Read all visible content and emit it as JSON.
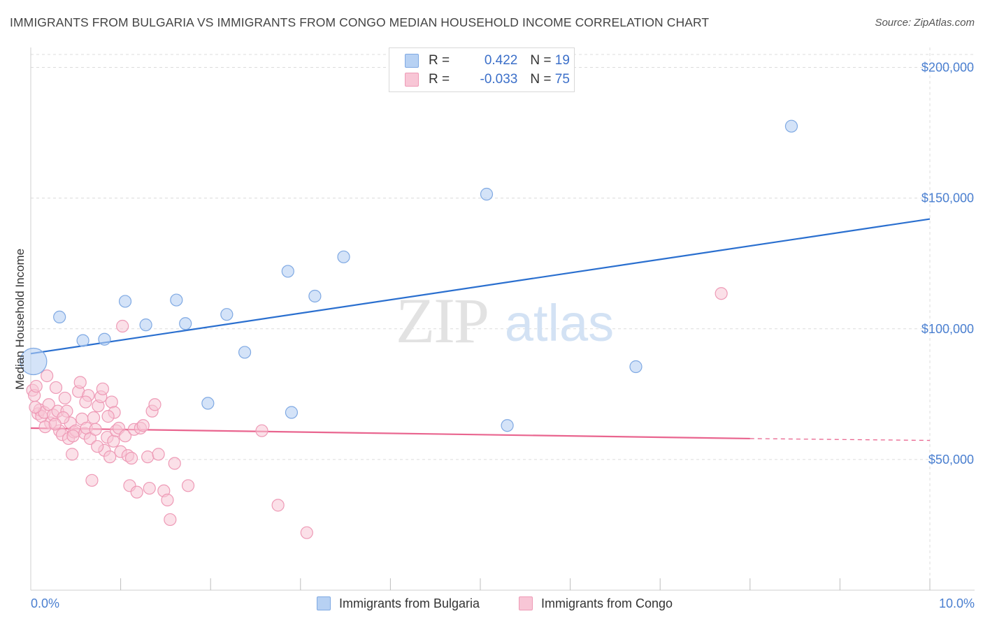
{
  "title": "IMMIGRANTS FROM BULGARIA VS IMMIGRANTS FROM CONGO MEDIAN HOUSEHOLD INCOME CORRELATION CHART",
  "source": "Source: ZipAtlas.com",
  "watermark": {
    "zip": "ZIP",
    "atlas": "atlas"
  },
  "legend": {
    "bulgaria": {
      "r_label": "R = ",
      "r_value": "0.422",
      "n_label": "N = ",
      "n_value": "19"
    },
    "congo": {
      "r_label": "R = ",
      "r_value": "-0.033",
      "n_label": "N = ",
      "n_value": "75"
    }
  },
  "bottom_legend": {
    "bulgaria": "Immigrants from Bulgaria",
    "congo": "Immigrants from Congo"
  },
  "colors": {
    "bulgaria_fill": "#b7d1f3",
    "bulgaria_stroke": "#7fa9e3",
    "bulgaria_line": "#2a6fcf",
    "congo_fill": "#f8c6d6",
    "congo_stroke": "#ee9ab6",
    "congo_line": "#e9658f",
    "tick_text": "#4a7fd0"
  },
  "chart_data": {
    "type": "scatter",
    "ylabel": "Median Household Income",
    "xlim": [
      0,
      10
    ],
    "ylim": [
      0,
      210000
    ],
    "x_tick_labels": [
      {
        "x": 0,
        "label": "0.0%"
      },
      {
        "x": 10,
        "label": "10.0%"
      }
    ],
    "y_ticks": [
      {
        "y": 50000,
        "label": "$50,000"
      },
      {
        "y": 100000,
        "label": "$100,000"
      },
      {
        "y": 150000,
        "label": "$150,000"
      },
      {
        "y": 200000,
        "label": "$200,000"
      }
    ],
    "grid": true,
    "series": [
      {
        "name": "Immigrants from Bulgaria",
        "points": [
          {
            "x": 0.03,
            "y": 87500,
            "big": true
          },
          {
            "x": 0.32,
            "y": 104500
          },
          {
            "x": 0.58,
            "y": 95500
          },
          {
            "x": 0.82,
            "y": 96000
          },
          {
            "x": 1.05,
            "y": 110500
          },
          {
            "x": 1.28,
            "y": 101500
          },
          {
            "x": 1.62,
            "y": 111000
          },
          {
            "x": 1.72,
            "y": 102000
          },
          {
            "x": 1.97,
            "y": 71500
          },
          {
            "x": 2.18,
            "y": 105500
          },
          {
            "x": 2.38,
            "y": 91000
          },
          {
            "x": 2.9,
            "y": 68000
          },
          {
            "x": 2.86,
            "y": 122000
          },
          {
            "x": 3.16,
            "y": 112500
          },
          {
            "x": 3.48,
            "y": 127500
          },
          {
            "x": 5.07,
            "y": 151500
          },
          {
            "x": 5.3,
            "y": 63000
          },
          {
            "x": 6.73,
            "y": 85500
          },
          {
            "x": 8.46,
            "y": 177500
          }
        ],
        "trend": {
          "x0": 0,
          "y0": 90500,
          "x1": 10,
          "y1": 142000
        }
      },
      {
        "name": "Immigrants from Congo",
        "points": [
          {
            "x": 0.02,
            "y": 76500
          },
          {
            "x": 0.04,
            "y": 74500
          },
          {
            "x": 0.06,
            "y": 78000
          },
          {
            "x": 0.08,
            "y": 67500
          },
          {
            "x": 0.1,
            "y": 69000
          },
          {
            "x": 0.12,
            "y": 66500
          },
          {
            "x": 0.15,
            "y": 68000
          },
          {
            "x": 0.18,
            "y": 82000
          },
          {
            "x": 0.2,
            "y": 71000
          },
          {
            "x": 0.22,
            "y": 64000
          },
          {
            "x": 0.25,
            "y": 67000
          },
          {
            "x": 0.28,
            "y": 77500
          },
          {
            "x": 0.3,
            "y": 68500
          },
          {
            "x": 0.32,
            "y": 61000
          },
          {
            "x": 0.35,
            "y": 59500
          },
          {
            "x": 0.38,
            "y": 73500
          },
          {
            "x": 0.4,
            "y": 68500
          },
          {
            "x": 0.42,
            "y": 58000
          },
          {
            "x": 0.44,
            "y": 64000
          },
          {
            "x": 0.46,
            "y": 52000
          },
          {
            "x": 0.48,
            "y": 60500
          },
          {
            "x": 0.5,
            "y": 61000
          },
          {
            "x": 0.53,
            "y": 76000
          },
          {
            "x": 0.55,
            "y": 79500
          },
          {
            "x": 0.57,
            "y": 65500
          },
          {
            "x": 0.6,
            "y": 60000
          },
          {
            "x": 0.62,
            "y": 62000
          },
          {
            "x": 0.64,
            "y": 74500
          },
          {
            "x": 0.66,
            "y": 58000
          },
          {
            "x": 0.68,
            "y": 42000
          },
          {
            "x": 0.7,
            "y": 66000
          },
          {
            "x": 0.72,
            "y": 61500
          },
          {
            "x": 0.75,
            "y": 70500
          },
          {
            "x": 0.78,
            "y": 74000
          },
          {
            "x": 0.8,
            "y": 77000
          },
          {
            "x": 0.82,
            "y": 53500
          },
          {
            "x": 0.85,
            "y": 58500
          },
          {
            "x": 0.88,
            "y": 51000
          },
          {
            "x": 0.9,
            "y": 72000
          },
          {
            "x": 0.92,
            "y": 57000
          },
          {
            "x": 0.95,
            "y": 61000
          },
          {
            "x": 0.98,
            "y": 62000
          },
          {
            "x": 1.0,
            "y": 53000
          },
          {
            "x": 1.02,
            "y": 101000
          },
          {
            "x": 1.05,
            "y": 59000
          },
          {
            "x": 1.08,
            "y": 51500
          },
          {
            "x": 1.1,
            "y": 40000
          },
          {
            "x": 1.12,
            "y": 50500
          },
          {
            "x": 1.15,
            "y": 61500
          },
          {
            "x": 1.18,
            "y": 37500
          },
          {
            "x": 1.22,
            "y": 62000
          },
          {
            "x": 1.3,
            "y": 51000
          },
          {
            "x": 1.32,
            "y": 39000
          },
          {
            "x": 1.35,
            "y": 68500
          },
          {
            "x": 1.38,
            "y": 71000
          },
          {
            "x": 1.42,
            "y": 52000
          },
          {
            "x": 1.48,
            "y": 38000
          },
          {
            "x": 1.52,
            "y": 34500
          },
          {
            "x": 1.55,
            "y": 27000
          },
          {
            "x": 1.6,
            "y": 48500
          },
          {
            "x": 1.75,
            "y": 40000
          },
          {
            "x": 0.05,
            "y": 70000
          },
          {
            "x": 0.36,
            "y": 66000
          },
          {
            "x": 0.61,
            "y": 72000
          },
          {
            "x": 0.93,
            "y": 68000
          },
          {
            "x": 1.25,
            "y": 63000
          },
          {
            "x": 0.16,
            "y": 62500
          },
          {
            "x": 0.47,
            "y": 59000
          },
          {
            "x": 0.74,
            "y": 55000
          },
          {
            "x": 2.57,
            "y": 61000
          },
          {
            "x": 2.75,
            "y": 32500
          },
          {
            "x": 3.07,
            "y": 22000
          },
          {
            "x": 7.68,
            "y": 113500
          },
          {
            "x": 0.27,
            "y": 63500
          },
          {
            "x": 0.86,
            "y": 66500
          }
        ],
        "trend": {
          "x0": 0,
          "y0": 62000,
          "x1": 8.0,
          "y1": 58000
        },
        "trend_dashed": {
          "x0": 8.0,
          "y0": 58000,
          "x1": 10,
          "y1": 57300
        }
      }
    ]
  }
}
